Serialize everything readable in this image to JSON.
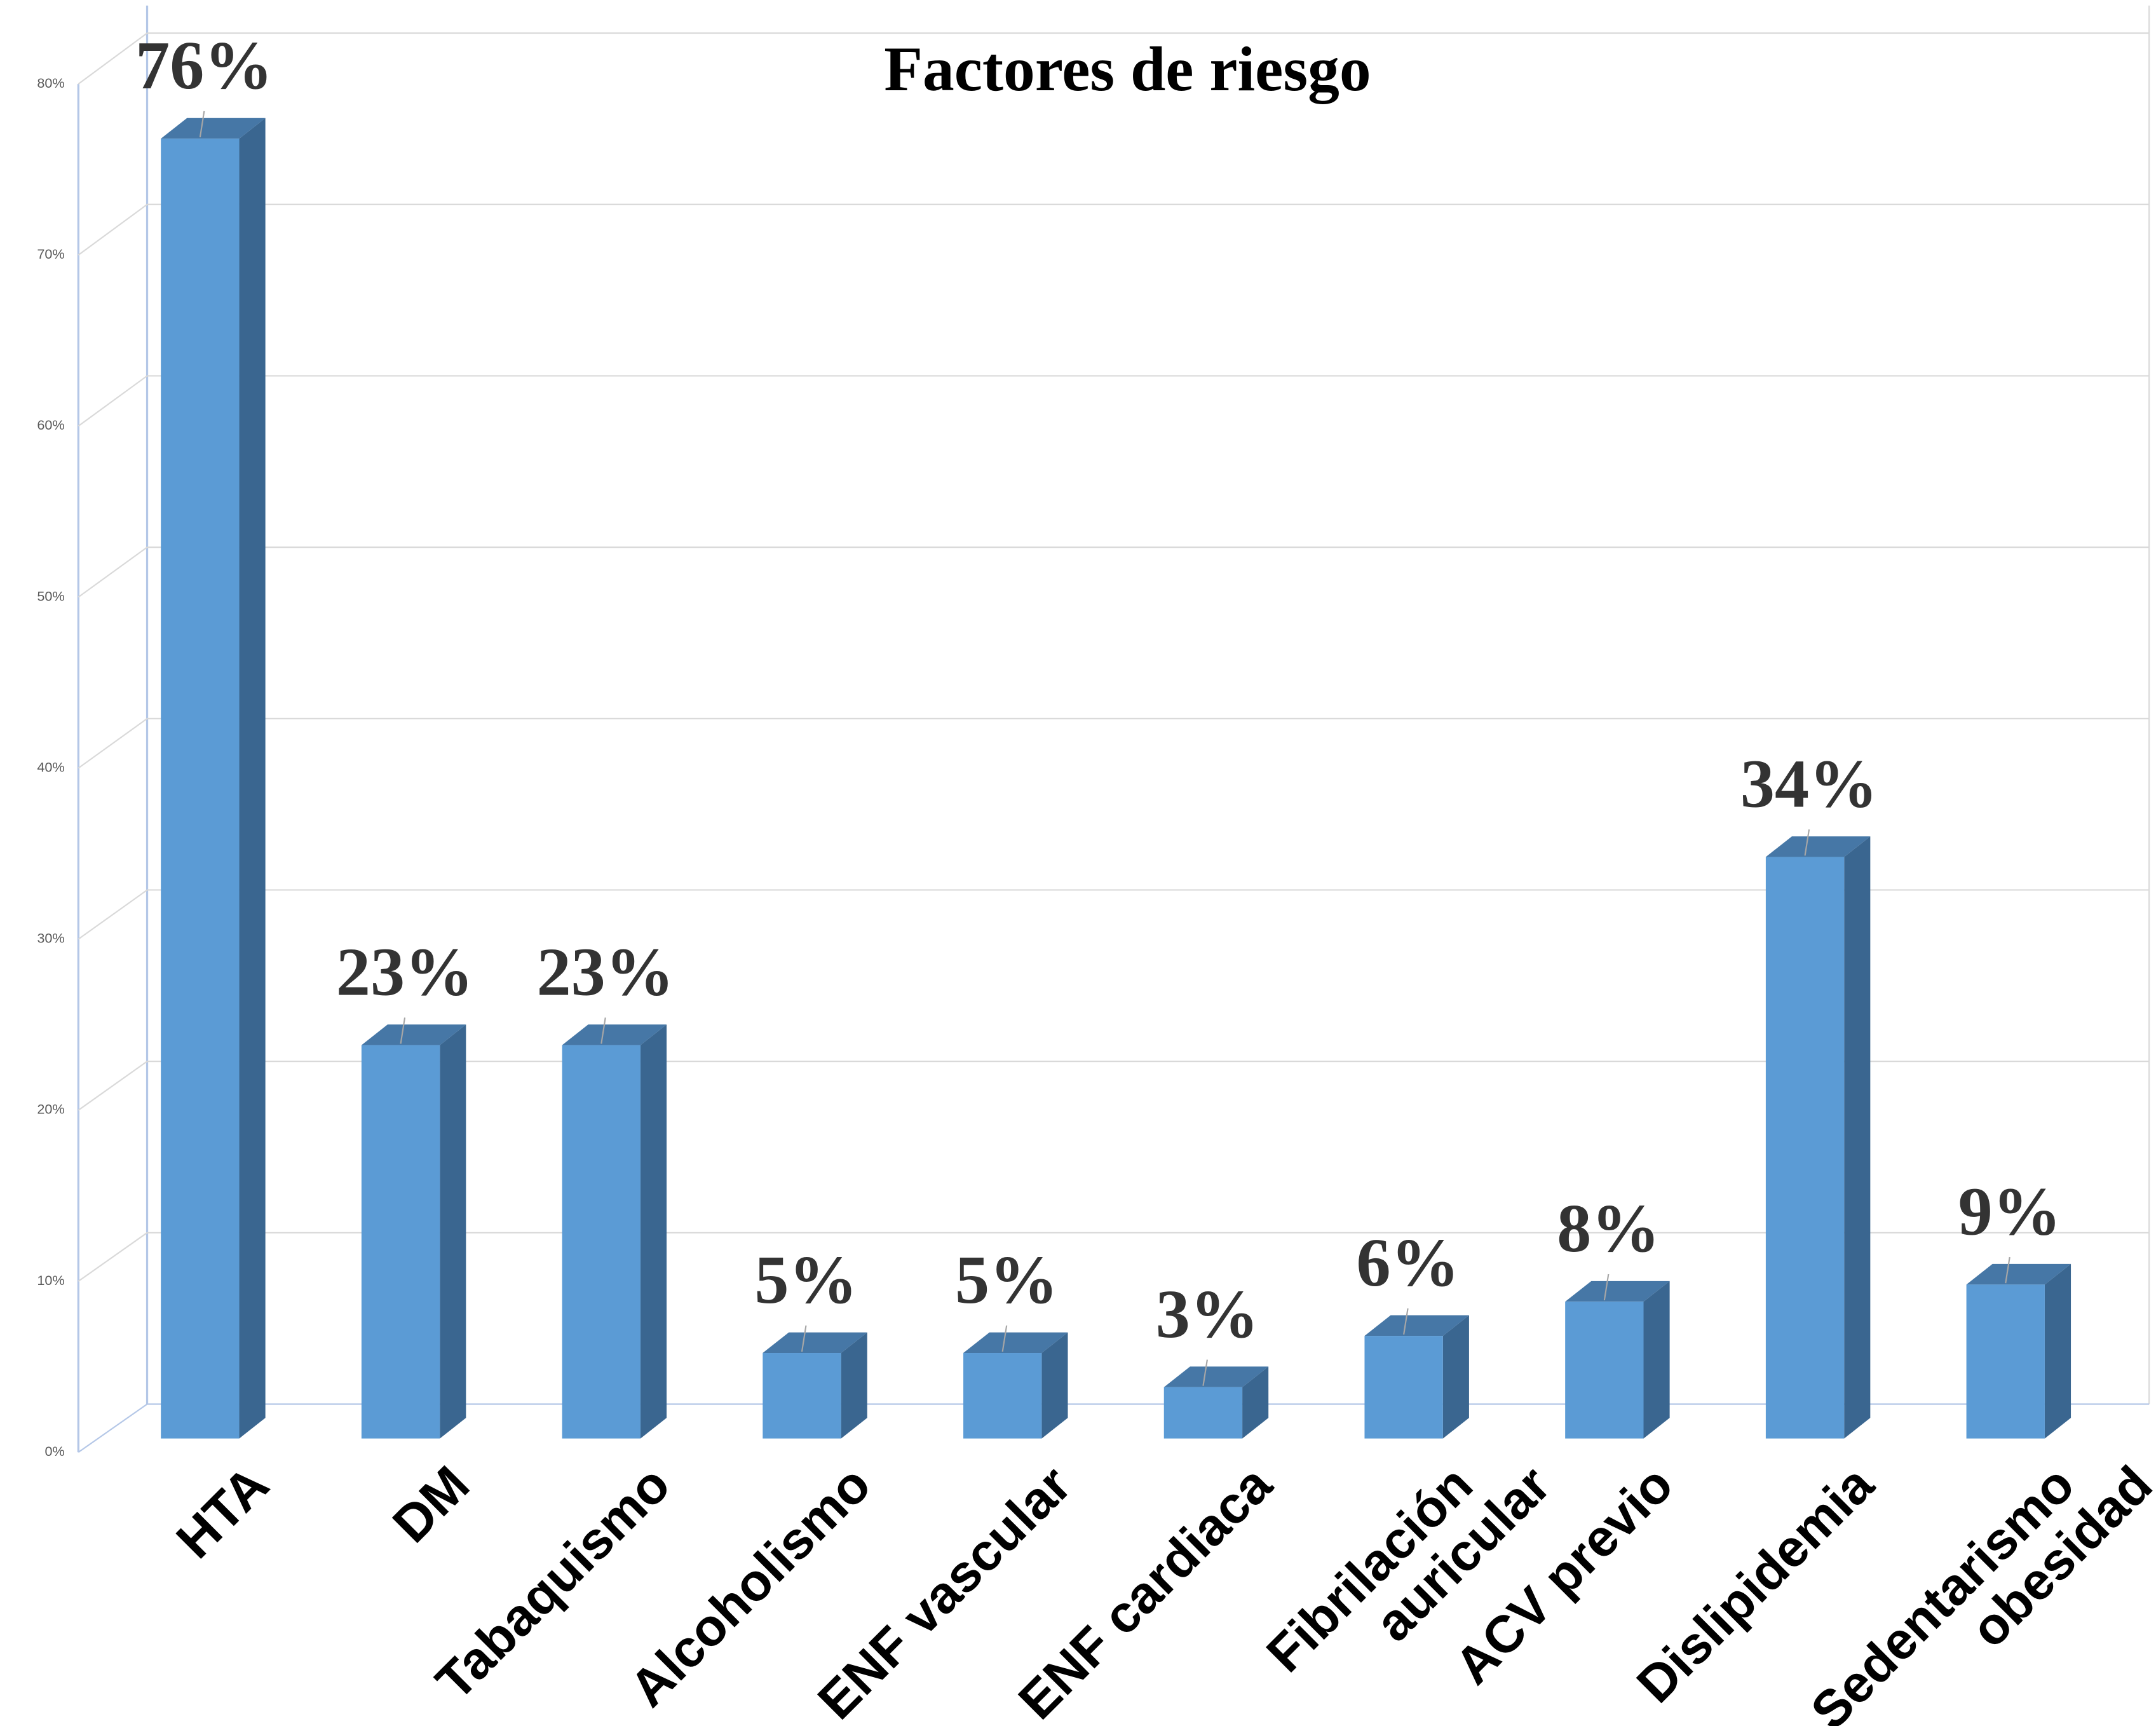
{
  "chart_data": {
    "type": "bar",
    "title": "Factores de riesgo",
    "categories": [
      "HTA",
      "DM",
      "Tabaquismo",
      "Alcoholismo",
      "ENF vascular",
      "ENF cardiaca",
      "Fibrilación\nauricular",
      "ACV previo",
      "Dislipidemia",
      "Sedentarismo\nobesidad"
    ],
    "values": [
      76,
      23,
      23,
      5,
      5,
      3,
      6,
      8,
      34,
      9
    ],
    "value_labels": [
      "76%",
      "23%",
      "23%",
      "5%",
      "5%",
      "3%",
      "6%",
      "8%",
      "34%",
      "9%"
    ],
    "color": "#5b9bd5",
    "ylim": [
      0,
      80
    ],
    "yticks": [
      {
        "value": 0,
        "label": "0%"
      },
      {
        "value": 10,
        "label": "10%"
      },
      {
        "value": 20,
        "label": "20%"
      },
      {
        "value": 30,
        "label": "30%"
      },
      {
        "value": 40,
        "label": "40%"
      },
      {
        "value": 50,
        "label": "50%"
      },
      {
        "value": 60,
        "label": "60%"
      },
      {
        "value": 70,
        "label": "70%"
      },
      {
        "value": 80,
        "label": "80%"
      }
    ],
    "grid": true
  }
}
